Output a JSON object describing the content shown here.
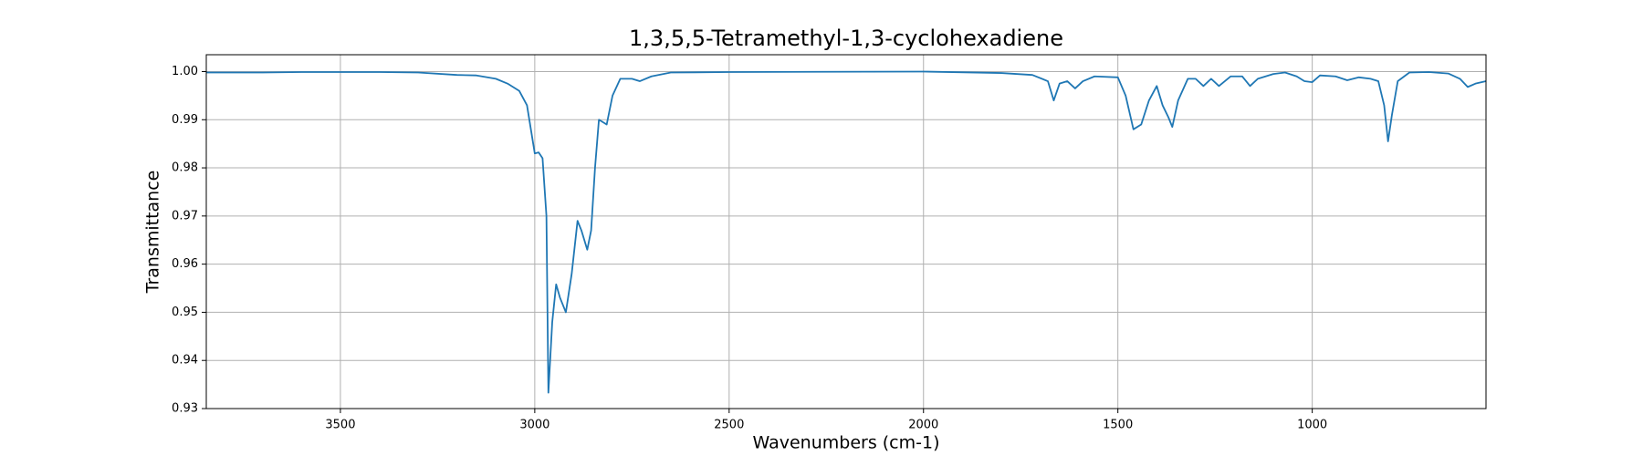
{
  "chart_data": {
    "type": "line",
    "title": "1,3,5,5-Tetramethyl-1,3-cyclohexadiene",
    "xlabel": "Wavenumbers (cm-1)",
    "ylabel": "Transmittance",
    "color": "#1f77b4",
    "grid": true,
    "xlim": [
      3845,
      553
    ],
    "ylim": [
      0.93,
      1.0035
    ],
    "xticks": [
      3500,
      3000,
      2500,
      2000,
      1500,
      1000
    ],
    "yticks": [
      0.93,
      0.94,
      0.95,
      0.96,
      0.97,
      0.98,
      0.99,
      {
        "value": 1,
        "label": "1.00"
      }
    ],
    "x": [
      3845,
      3700,
      3600,
      3500,
      3400,
      3300,
      3200,
      3150,
      3100,
      3070,
      3040,
      3020,
      3010,
      3000,
      2990,
      2980,
      2970,
      2965,
      2955,
      2945,
      2935,
      2920,
      2905,
      2890,
      2880,
      2865,
      2855,
      2845,
      2835,
      2825,
      2815,
      2800,
      2780,
      2750,
      2730,
      2700,
      2650,
      2500,
      2000,
      1800,
      1720,
      1680,
      1665,
      1650,
      1630,
      1610,
      1590,
      1560,
      1500,
      1480,
      1460,
      1440,
      1420,
      1400,
      1385,
      1370,
      1360,
      1345,
      1320,
      1300,
      1280,
      1260,
      1240,
      1210,
      1180,
      1160,
      1140,
      1100,
      1070,
      1040,
      1020,
      1000,
      980,
      940,
      910,
      880,
      850,
      830,
      815,
      805,
      795,
      780,
      750,
      700,
      650,
      620,
      600,
      580,
      553
    ],
    "values": [
      0.9998,
      0.9998,
      0.9999,
      0.9999,
      0.9999,
      0.9998,
      0.9993,
      0.9992,
      0.9985,
      0.9975,
      0.996,
      0.993,
      0.988,
      0.983,
      0.9832,
      0.982,
      0.97,
      0.9333,
      0.948,
      0.9558,
      0.953,
      0.95,
      0.958,
      0.969,
      0.967,
      0.963,
      0.967,
      0.98,
      0.99,
      0.9895,
      0.989,
      0.995,
      0.9985,
      0.9985,
      0.998,
      0.999,
      0.9998,
      0.9999,
      1.0,
      0.9997,
      0.9993,
      0.998,
      0.994,
      0.9975,
      0.998,
      0.9965,
      0.998,
      0.999,
      0.9988,
      0.995,
      0.988,
      0.989,
      0.994,
      0.997,
      0.993,
      0.9905,
      0.9885,
      0.994,
      0.9985,
      0.9985,
      0.997,
      0.9985,
      0.997,
      0.999,
      0.999,
      0.997,
      0.9985,
      0.9995,
      0.9998,
      0.999,
      0.998,
      0.9978,
      0.9992,
      0.999,
      0.9982,
      0.9988,
      0.9985,
      0.998,
      0.993,
      0.9855,
      0.991,
      0.998,
      0.9998,
      0.9999,
      0.9996,
      0.9985,
      0.9968,
      0.9975,
      0.998
    ]
  }
}
